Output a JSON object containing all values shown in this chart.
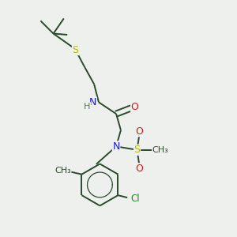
{
  "bg_color": "#edf0ed",
  "bond_color": "#2a4a2a",
  "atom_colors": {
    "S": "#b8b800",
    "N": "#1a1acc",
    "O": "#cc1a1a",
    "Cl": "#228b22",
    "H": "#5a7a5a",
    "C": "#2a4a2a"
  },
  "figsize": [
    3.0,
    3.0
  ],
  "dpi": 100
}
